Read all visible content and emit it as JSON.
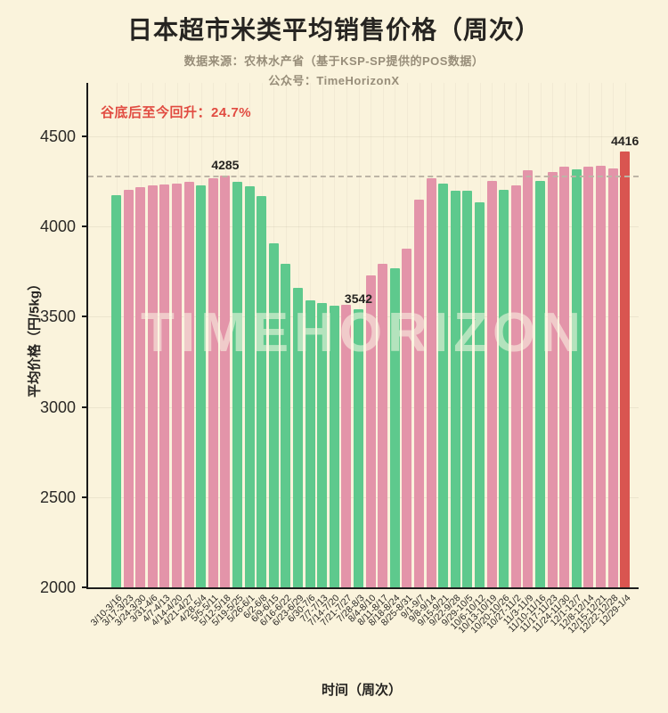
{
  "header": {
    "title": "日本超市米类平均销售价格（周次）",
    "subtitle_source": "数据来源：农林水产省（基于KSP-SP提供的POS数据）",
    "subtitle_account": "公众号：TimeHorizonX"
  },
  "annotation": {
    "text": "谷底后至今回升：24.7%",
    "color": "#e14b41"
  },
  "watermark": "TIMEHORIZON",
  "chart_data": {
    "type": "bar",
    "title": "日本超市米类平均销售价格（周次）",
    "xlabel": "时间（周次）",
    "ylabel": "平均价格（円/5kg）",
    "ylim": [
      2000,
      4600
    ],
    "yticks": [
      2000,
      2500,
      3000,
      3500,
      4000,
      4500
    ],
    "grid": "faint",
    "legend": "none",
    "reference_line": {
      "value": 4285,
      "style": "dashed",
      "color": "#bdb5a6"
    },
    "colors": {
      "green": "#5ec98d",
      "pink": "#e394a9",
      "red": "#d95550"
    },
    "categories": [
      "3/10-3/16",
      "3/17-3/23",
      "3/24-3/30",
      "3/31-4/6",
      "4/7-4/13",
      "4/14-4/20",
      "4/21-4/27",
      "4/28-5/4",
      "5/5-5/11",
      "5/12-5/18",
      "5/19-5/25",
      "5/26-6/1",
      "6/2-6/8",
      "6/9-6/15",
      "6/16-6/22",
      "6/23-6/29",
      "6/30-7/6",
      "7/7-7/13",
      "7/14-7/20",
      "7/21-7/27",
      "7/28-8/3",
      "8/4-8/10",
      "8/11-8/17",
      "8/18-8/24",
      "8/25-8/31",
      "9/1-9/7",
      "9/8-9/14",
      "9/15-9/21",
      "9/22-9/28",
      "9/29-10/5",
      "10/6-10/12",
      "10/13-10/19",
      "10/20-10/26",
      "10/27-11/2",
      "11/3-11/9",
      "11/10-11/16",
      "11/17-11/23",
      "11/24-11/30",
      "12/1-12/7",
      "12/8-12/14",
      "12/15-12/21",
      "12/22-12/28",
      "12/29-1/4"
    ],
    "values": [
      4176,
      4205,
      4218,
      4227,
      4233,
      4237,
      4246,
      4226,
      4268,
      4285,
      4250,
      4221,
      4171,
      3908,
      3792,
      3658,
      3592,
      3575,
      3563,
      3568,
      3542,
      3727,
      3792,
      3770,
      3880,
      4148,
      4270,
      4237,
      4201,
      4198,
      4132,
      4254,
      4205,
      4229,
      4310,
      4251,
      4303,
      4333,
      4316,
      4330,
      4338,
      4322,
      4416
    ],
    "bar_colors": [
      "green",
      "pink",
      "pink",
      "pink",
      "pink",
      "pink",
      "pink",
      "green",
      "pink",
      "pink",
      "green",
      "green",
      "green",
      "green",
      "green",
      "green",
      "green",
      "green",
      "green",
      "pink",
      "green",
      "pink",
      "pink",
      "green",
      "pink",
      "pink",
      "pink",
      "green",
      "green",
      "green",
      "green",
      "pink",
      "green",
      "pink",
      "pink",
      "green",
      "pink",
      "pink",
      "green",
      "pink",
      "pink",
      "pink",
      "red"
    ],
    "value_labels": [
      {
        "index": 9,
        "text": "4285"
      },
      {
        "index": 20,
        "text": "3542"
      },
      {
        "index": 42,
        "text": "4416"
      }
    ]
  }
}
